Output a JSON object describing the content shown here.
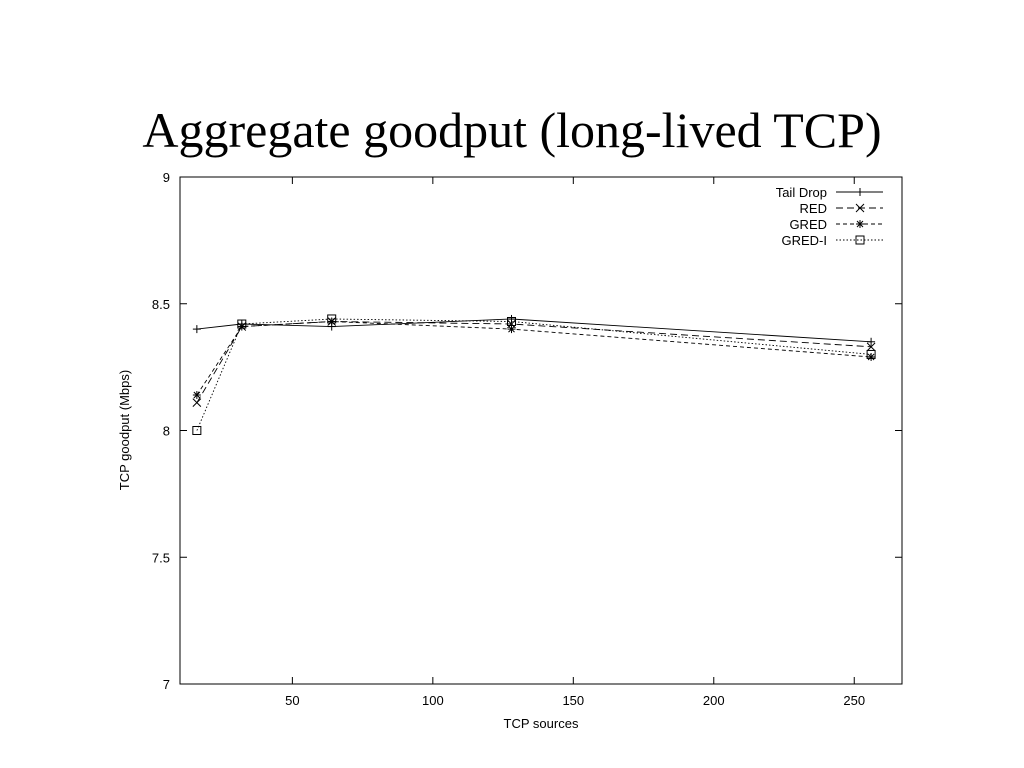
{
  "slide": {
    "title": "Aggregate goodput (long-lived TCP)"
  },
  "chart_data": {
    "type": "line",
    "title": "",
    "xlabel": "TCP sources",
    "ylabel": "TCP goodput (Mbps)",
    "xlim": [
      10,
      267
    ],
    "ylim": [
      7,
      9
    ],
    "xticks": [
      50,
      100,
      150,
      200,
      250
    ],
    "yticks": [
      7,
      7.5,
      8,
      8.5,
      9
    ],
    "grid": false,
    "legend_position": "top-right",
    "x": [
      16,
      32,
      64,
      128,
      256
    ],
    "series": [
      {
        "name": "Tail Drop",
        "marker": "plus",
        "dash": "",
        "values": [
          8.4,
          8.42,
          8.41,
          8.44,
          8.35
        ]
      },
      {
        "name": "RED",
        "marker": "cross",
        "dash": "7,4",
        "values": [
          8.11,
          8.41,
          8.43,
          8.42,
          8.33
        ]
      },
      {
        "name": "GRED",
        "marker": "star",
        "dash": "4,3",
        "values": [
          8.14,
          8.41,
          8.43,
          8.4,
          8.29
        ]
      },
      {
        "name": "GRED-I",
        "marker": "square",
        "dash": "1.5,2",
        "values": [
          8.0,
          8.42,
          8.44,
          8.43,
          8.3
        ]
      }
    ]
  }
}
